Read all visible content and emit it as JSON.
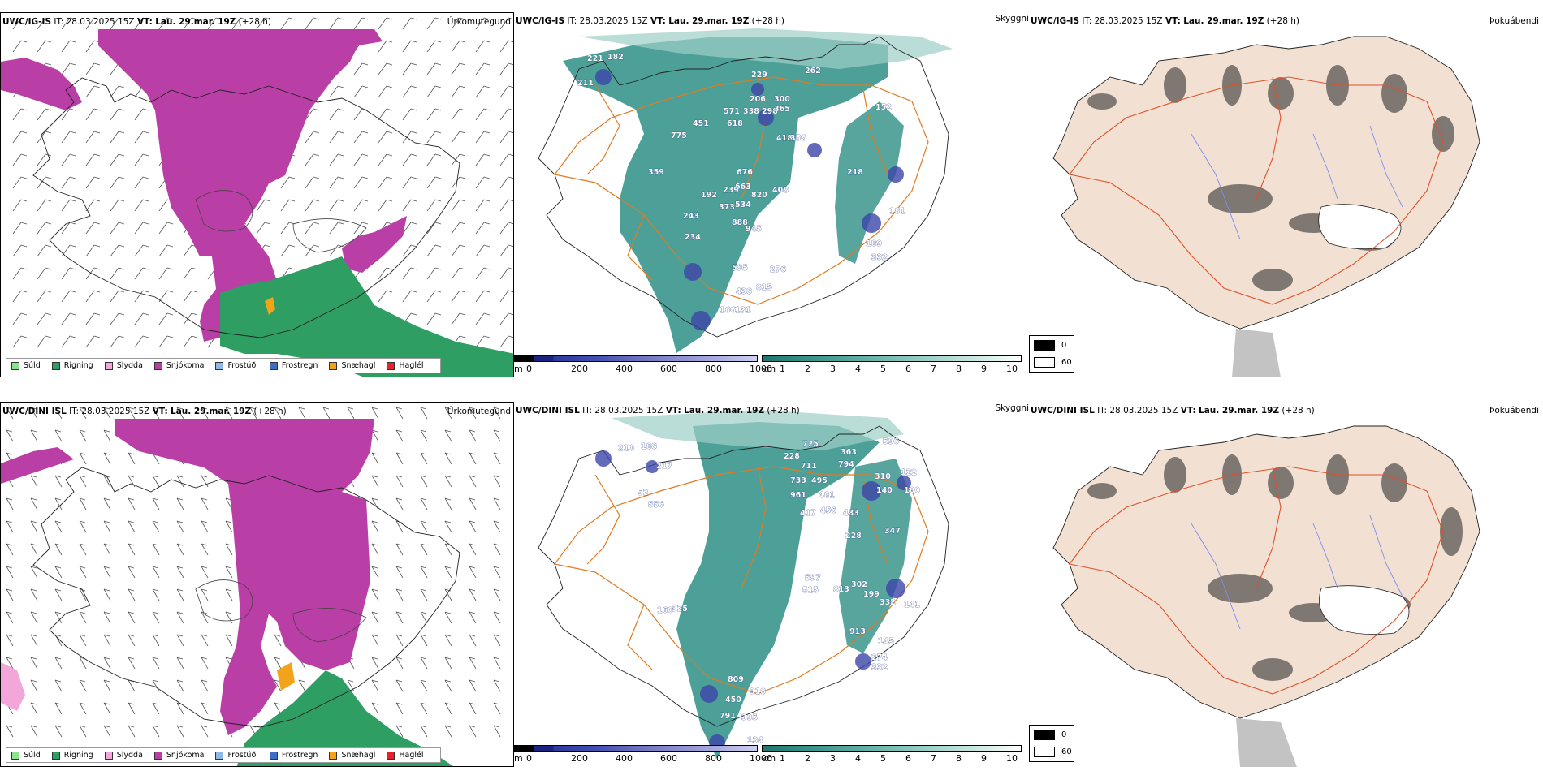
{
  "colors": {
    "sud": "#8fe08f",
    "rigning": "#2e9e63",
    "slydda": "#f2a6d9",
    "snjokoma": "#b93ea5",
    "frostudi": "#8fb8e8",
    "frostregn": "#3a6fc4",
    "snaehagl": "#f3a31a",
    "haglel": "#e8202a",
    "cloud_low": "#2e8f86",
    "cloud_mid": "#9ccfc8",
    "roads": "#e07a22",
    "terrain_base": "#f2e1d2",
    "rivers": "#7d8cf0"
  },
  "rows": [
    {
      "model": "UWC/IG-IS",
      "it_label": "IT:",
      "it_value": "28.03.2025 15Z",
      "vt_label": "VT:",
      "vt_value": "Lau. 29.mar. 19Z",
      "lead": "(+28 h)",
      "precip_title": "Úrkomutegund",
      "cloud_title": "Skyggni",
      "fog_title": "Þokuábendi",
      "cloud_points": [
        {
          "v": "221"
        },
        {
          "v": "182"
        },
        {
          "v": "211"
        },
        {
          "v": "229"
        },
        {
          "v": "262"
        },
        {
          "v": "206"
        },
        {
          "v": "300"
        },
        {
          "v": "571"
        },
        {
          "v": "338"
        },
        {
          "v": "298"
        },
        {
          "v": "365"
        },
        {
          "v": "451"
        },
        {
          "v": "618"
        },
        {
          "v": "775"
        },
        {
          "v": "152"
        },
        {
          "v": "418"
        },
        {
          "v": "356"
        },
        {
          "v": "359"
        },
        {
          "v": "676"
        },
        {
          "v": "663"
        },
        {
          "v": "239"
        },
        {
          "v": "192"
        },
        {
          "v": "820"
        },
        {
          "v": "373"
        },
        {
          "v": "408"
        },
        {
          "v": "534"
        },
        {
          "v": "243"
        },
        {
          "v": "218"
        },
        {
          "v": "888"
        },
        {
          "v": "945"
        },
        {
          "v": "234"
        },
        {
          "v": "181"
        },
        {
          "v": "189"
        },
        {
          "v": "595"
        },
        {
          "v": "276"
        },
        {
          "v": "815"
        },
        {
          "v": "438"
        },
        {
          "v": "166"
        },
        {
          "v": "131"
        },
        {
          "v": "332"
        }
      ]
    },
    {
      "model": "UWC/DINI ISL",
      "it_label": "IT:",
      "it_value": "28.03.2025 15Z",
      "vt_label": "VT:",
      "vt_value": "Lau. 29.mar. 19Z",
      "lead": "(+28 h)",
      "precip_title": "Úrkomutegund",
      "cloud_title": "Skyggni",
      "fog_title": "Þokuábendi",
      "cloud_points": [
        {
          "v": "210"
        },
        {
          "v": "188"
        },
        {
          "v": "217"
        },
        {
          "v": "725"
        },
        {
          "v": "363"
        },
        {
          "v": "596"
        },
        {
          "v": "228"
        },
        {
          "v": "711"
        },
        {
          "v": "794"
        },
        {
          "v": "733"
        },
        {
          "v": "495"
        },
        {
          "v": "310"
        },
        {
          "v": "122"
        },
        {
          "v": "961"
        },
        {
          "v": "481"
        },
        {
          "v": "140"
        },
        {
          "v": "52"
        },
        {
          "v": "556"
        },
        {
          "v": "417"
        },
        {
          "v": "456"
        },
        {
          "v": "433"
        },
        {
          "v": "100"
        },
        {
          "v": "228"
        },
        {
          "v": "347"
        },
        {
          "v": "597"
        },
        {
          "v": "515"
        },
        {
          "v": "813"
        },
        {
          "v": "302"
        },
        {
          "v": "199"
        },
        {
          "v": "332"
        },
        {
          "v": "160"
        },
        {
          "v": "325"
        },
        {
          "v": "141"
        },
        {
          "v": "913"
        },
        {
          "v": "145"
        },
        {
          "v": "274"
        },
        {
          "v": "332"
        },
        {
          "v": "809"
        },
        {
          "v": "318"
        },
        {
          "v": "450"
        },
        {
          "v": "791"
        },
        {
          "v": "395"
        },
        {
          "v": "134"
        }
      ]
    }
  ],
  "precip_legend": [
    {
      "label": "Súld",
      "color_key": "sud"
    },
    {
      "label": "Rigning",
      "color_key": "rigning"
    },
    {
      "label": "Slydda",
      "color_key": "slydda"
    },
    {
      "label": "Snjókoma",
      "color_key": "snjokoma"
    },
    {
      "label": "Frostúði",
      "color_key": "frostudi"
    },
    {
      "label": "Frostregn",
      "color_key": "frostregn"
    },
    {
      "label": "Snæhagl",
      "color_key": "snaehagl"
    },
    {
      "label": "Haglél",
      "color_key": "haglel"
    }
  ],
  "ceiling_bar": {
    "unit": "m",
    "ticks": [
      "0",
      "200",
      "400",
      "600",
      "800",
      "1000"
    ]
  },
  "visibility_bar": {
    "unit": "km",
    "ticks": [
      "1",
      "2",
      "3",
      "4",
      "5",
      "6",
      "7",
      "8",
      "9",
      "10"
    ]
  },
  "fog_legend": [
    {
      "label": "0"
    },
    {
      "label": "60"
    }
  ]
}
